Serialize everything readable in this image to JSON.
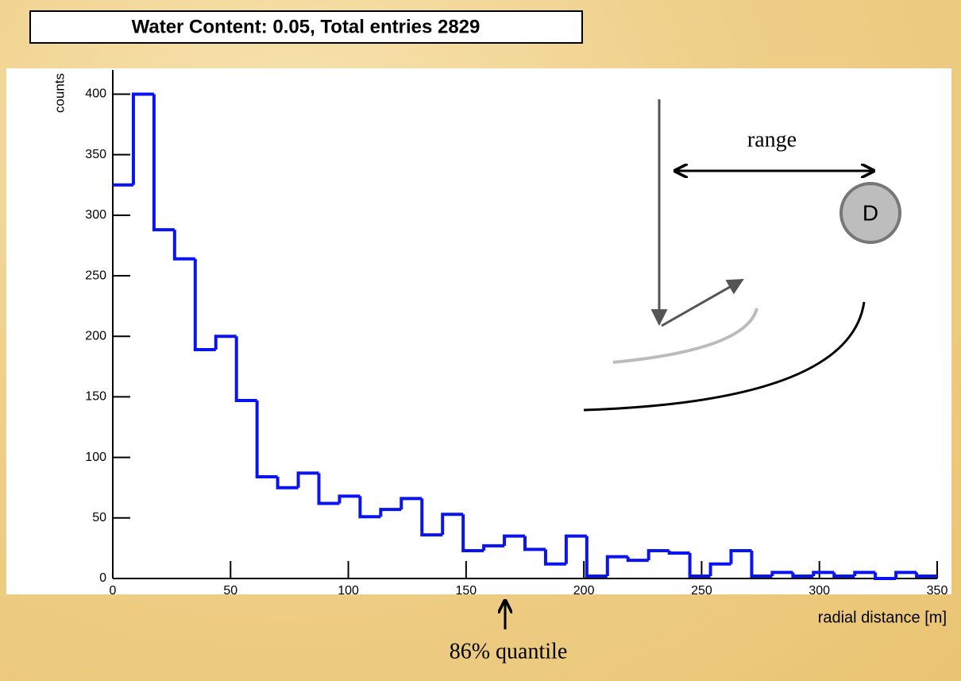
{
  "chart_data": {
    "type": "histogram",
    "title": "Water Content: 0.05, Total entries 2829",
    "x_label": "radial distance [m]",
    "y_label": "counts",
    "bins": [
      0,
      8.75,
      17.5,
      26.25,
      35,
      43.75,
      52.5,
      61.25,
      70,
      78.75,
      87.5,
      96.25,
      105,
      113.75,
      122.5,
      131.25,
      140,
      148.75,
      157.5,
      166.25,
      175,
      183.75,
      192.5,
      201.25,
      210,
      218.75,
      227.5,
      236.25,
      245,
      253.75,
      262.5,
      271.25,
      280,
      288.75,
      297.5,
      306.25,
      315,
      323.75,
      332.5,
      341.25,
      350
    ],
    "values": [
      325,
      400,
      288,
      264,
      189,
      200,
      147,
      84,
      75,
      87,
      62,
      68,
      51,
      57,
      66,
      36,
      53,
      23,
      27,
      35,
      24,
      12,
      35,
      2,
      18,
      15,
      23,
      21,
      2,
      12,
      23,
      2,
      5,
      2,
      5,
      2,
      5,
      0,
      5,
      2
    ],
    "color": "#0a14f0",
    "xlim": [
      0,
      350
    ],
    "ylim": [
      0,
      420
    ],
    "xticks": [
      0,
      50,
      100,
      150,
      200,
      250,
      300,
      350
    ],
    "yticks": [
      0,
      50,
      100,
      150,
      200,
      250,
      300,
      350,
      400
    ],
    "annotations": [
      "range",
      "D",
      "86% quantile"
    ]
  }
}
